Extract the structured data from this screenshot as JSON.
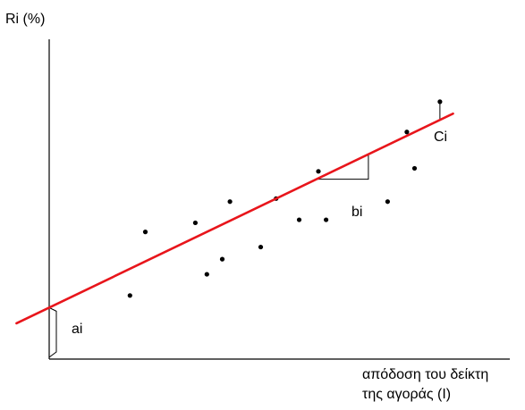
{
  "labels": {
    "y_axis": "Ri (%)",
    "x_axis_line1": "απόδοση του δείκτη",
    "x_axis_line2": "της αγοράς (Ι)",
    "intercept": "ai",
    "slope": "bi",
    "residual": "Ci"
  },
  "colors": {
    "regression_line": "#e8151b",
    "points": "#000000",
    "axes": "#000000"
  },
  "chart_data": {
    "type": "scatter",
    "x_range": [
      0,
      100
    ],
    "y_range": [
      0,
      100
    ],
    "points": [
      {
        "x": 21,
        "y": 21
      },
      {
        "x": 25,
        "y": 42
      },
      {
        "x": 38,
        "y": 45
      },
      {
        "x": 41,
        "y": 28
      },
      {
        "x": 45,
        "y": 33
      },
      {
        "x": 47,
        "y": 52
      },
      {
        "x": 55,
        "y": 37
      },
      {
        "x": 59,
        "y": 53
      },
      {
        "x": 65,
        "y": 46
      },
      {
        "x": 70,
        "y": 62
      },
      {
        "x": 72,
        "y": 46
      },
      {
        "x": 88,
        "y": 52
      },
      {
        "x": 93,
        "y": 75
      },
      {
        "x": 95,
        "y": 63
      }
    ],
    "regression_line": {
      "intercept": 17,
      "slope": 0.61
    },
    "annotations": {
      "slope_triangle": {
        "x1": 69.5,
        "x2": 83
      },
      "residual": {
        "x": 101.6,
        "y": 85
      }
    }
  }
}
